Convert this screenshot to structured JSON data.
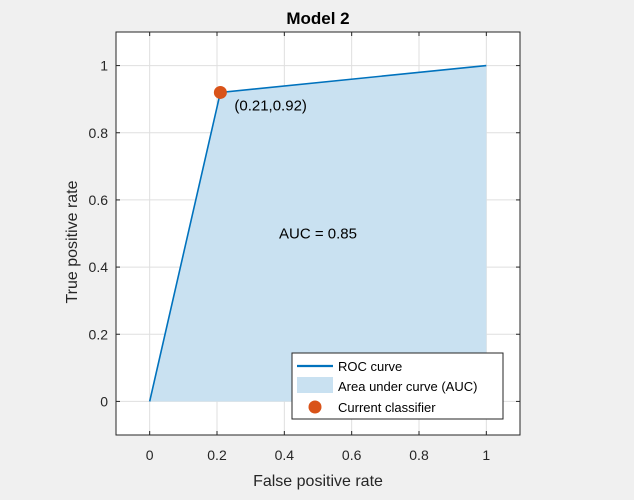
{
  "chart_data": {
    "type": "line",
    "title": "Model 2",
    "xlabel": "False positive rate",
    "ylabel": "True positive rate",
    "xlim": [
      -0.1,
      1.1
    ],
    "ylim": [
      -0.1,
      1.1
    ],
    "xticks": [
      0,
      0.2,
      0.4,
      0.6,
      0.8,
      1
    ],
    "yticks": [
      0,
      0.2,
      0.4,
      0.6,
      0.8,
      1
    ],
    "xtick_labels": [
      "0",
      "0.2",
      "0.4",
      "0.6",
      "0.8",
      "1"
    ],
    "ytick_labels": [
      "0",
      "0.2",
      "0.4",
      "0.6",
      "0.8",
      "1"
    ],
    "grid": true,
    "legend_position": "bottom-right",
    "series": [
      {
        "name": "ROC curve",
        "x": [
          0,
          0.21,
          1
        ],
        "y": [
          0,
          0.92,
          1
        ],
        "color": "#0072BD"
      }
    ],
    "area": {
      "name": "Area under curve (AUC)",
      "color": "#c9e1f1"
    },
    "current_classifier": {
      "name": "Current classifier",
      "x": 0.21,
      "y": 0.92,
      "color": "#D95319",
      "label": "(0.21,0.92)"
    },
    "annotations": [
      {
        "text": "AUC = 0.85",
        "x": 0.5,
        "y": 0.5
      }
    ]
  }
}
